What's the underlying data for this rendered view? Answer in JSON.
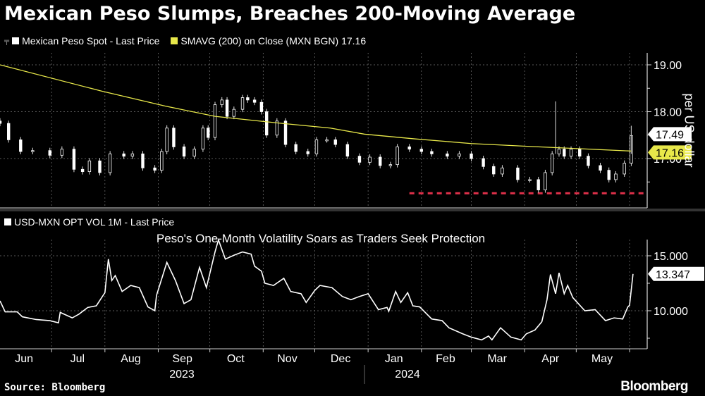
{
  "title": "Mexican Peso Slumps, Breaches 200-Moving Average",
  "source": "Source: Bloomberg",
  "logo": "Bloomberg",
  "colors": {
    "background": "#000000",
    "price": "#ffffff",
    "sma": "#e8e84a",
    "support": "#e0304a",
    "grid": "#777777"
  },
  "chart_data": [
    {
      "type": "candlestick",
      "legend": [
        {
          "name": "Mexican Peso Spot - Last Price",
          "color": "#ffffff"
        },
        {
          "name": "SMAVG (200)  on Close (MXN BGN) 17.16",
          "color": "#e8e84a"
        }
      ],
      "legend_placement": "top-left",
      "ylabel": "per US dollar",
      "ylim": [
        16.0,
        19.25
      ],
      "yticks": [
        "19.00",
        "18.00",
        "17.00"
      ],
      "grid": true,
      "last_labels": [
        {
          "value": "17.49",
          "series": "price"
        },
        {
          "value": "17.16",
          "series": "sma"
        }
      ],
      "price_close": [
        [
          "2023-06-01",
          17.75
        ],
        [
          "2023-06-06",
          17.4
        ],
        [
          "2023-06-13",
          17.15
        ],
        [
          "2023-06-20",
          17.17
        ],
        [
          "2023-06-30",
          17.07
        ],
        [
          "2023-07-07",
          17.2
        ],
        [
          "2023-07-14",
          16.77
        ],
        [
          "2023-07-19",
          16.72
        ],
        [
          "2023-07-23",
          16.95
        ],
        [
          "2023-07-29",
          16.7
        ],
        [
          "2023-08-04",
          17.1
        ],
        [
          "2023-08-12",
          17.05
        ],
        [
          "2023-08-17",
          17.1
        ],
        [
          "2023-08-23",
          16.8
        ],
        [
          "2023-08-30",
          16.75
        ],
        [
          "2023-09-03",
          17.15
        ],
        [
          "2023-09-06",
          17.65
        ],
        [
          "2023-09-10",
          17.25
        ],
        [
          "2023-09-16",
          17.05
        ],
        [
          "2023-09-22",
          17.2
        ],
        [
          "2023-09-27",
          17.65
        ],
        [
          "2023-09-30",
          17.45
        ],
        [
          "2023-10-04",
          18.15
        ],
        [
          "2023-10-08",
          18.25
        ],
        [
          "2023-10-11",
          17.9
        ],
        [
          "2023-10-15",
          18.05
        ],
        [
          "2023-10-20",
          18.3
        ],
        [
          "2023-10-23",
          18.25
        ],
        [
          "2023-10-27",
          18.2
        ],
        [
          "2023-10-31",
          18.0
        ],
        [
          "2023-11-03",
          17.5
        ],
        [
          "2023-11-09",
          17.8
        ],
        [
          "2023-11-14",
          17.3
        ],
        [
          "2023-11-20",
          17.15
        ],
        [
          "2023-11-27",
          17.1
        ],
        [
          "2023-12-02",
          17.4
        ],
        [
          "2023-12-08",
          17.4
        ],
        [
          "2023-12-13",
          17.3
        ],
        [
          "2023-12-20",
          17.05
        ],
        [
          "2023-12-27",
          16.92
        ],
        [
          "2024-01-02",
          17.03
        ],
        [
          "2024-01-08",
          16.85
        ],
        [
          "2024-01-14",
          16.87
        ],
        [
          "2024-01-18",
          17.25
        ],
        [
          "2024-01-25",
          17.2
        ],
        [
          "2024-02-01",
          17.15
        ],
        [
          "2024-02-07",
          17.1
        ],
        [
          "2024-02-16",
          17.05
        ],
        [
          "2024-02-23",
          17.1
        ],
        [
          "2024-03-01",
          17.0
        ],
        [
          "2024-03-08",
          16.83
        ],
        [
          "2024-03-14",
          16.67
        ],
        [
          "2024-03-19",
          16.8
        ],
        [
          "2024-03-28",
          16.55
        ],
        [
          "2024-04-04",
          16.55
        ],
        [
          "2024-04-09",
          16.33
        ],
        [
          "2024-04-13",
          16.7
        ],
        [
          "2024-04-17",
          17.1
        ],
        [
          "2024-04-21",
          17.2
        ],
        [
          "2024-04-24",
          17.05
        ],
        [
          "2024-04-28",
          17.2
        ],
        [
          "2024-05-03",
          17.05
        ],
        [
          "2024-05-08",
          16.85
        ],
        [
          "2024-05-15",
          16.75
        ],
        [
          "2024-05-20",
          16.55
        ],
        [
          "2024-05-24",
          16.67
        ],
        [
          "2024-05-29",
          16.9
        ],
        [
          "2024-06-02",
          17.49
        ]
      ],
      "price_spikes": [
        [
          "2024-04-19",
          18.22
        ],
        [
          "2024-06-02",
          17.7
        ]
      ],
      "sma": [
        [
          "2023-06-01",
          19.0
        ],
        [
          "2023-07-30",
          18.44
        ],
        [
          "2023-09-05",
          18.12
        ],
        [
          "2023-10-04",
          17.9
        ],
        [
          "2023-11-12",
          17.75
        ],
        [
          "2023-12-10",
          17.65
        ],
        [
          "2023-12-30",
          17.52
        ],
        [
          "2024-01-28",
          17.42
        ],
        [
          "2024-03-01",
          17.32
        ],
        [
          "2024-04-09",
          17.25
        ],
        [
          "2024-06-02",
          17.16
        ]
      ],
      "support_line": {
        "value": 16.26,
        "from": "2024-01-25"
      }
    },
    {
      "type": "line",
      "legend": [
        {
          "name": "USD-MXN OPT VOL 1M - Last Price",
          "color": "#ffffff"
        }
      ],
      "title": "Peso's One-Month Volatility Soars as Traders Seek Protection",
      "ylim": [
        6.5,
        16.5
      ],
      "yticks": [
        "15.000",
        "10.000"
      ],
      "grid": true,
      "last_label": "13.347",
      "series": [
        [
          "2023-06-01",
          10.9
        ],
        [
          "2023-06-04",
          9.9
        ],
        [
          "2023-06-11",
          9.9
        ],
        [
          "2023-06-14",
          9.45
        ],
        [
          "2023-06-22",
          9.2
        ],
        [
          "2023-06-30",
          9.1
        ],
        [
          "2023-07-05",
          8.9
        ],
        [
          "2023-07-06",
          9.85
        ],
        [
          "2023-07-13",
          9.35
        ],
        [
          "2023-07-17",
          9.7
        ],
        [
          "2023-07-22",
          10.3
        ],
        [
          "2023-07-27",
          10.45
        ],
        [
          "2023-08-01",
          11.65
        ],
        [
          "2023-08-03",
          14.7
        ],
        [
          "2023-08-05",
          12.75
        ],
        [
          "2023-08-07",
          13.2
        ],
        [
          "2023-08-11",
          11.75
        ],
        [
          "2023-08-16",
          12.3
        ],
        [
          "2023-08-21",
          12.1
        ],
        [
          "2023-08-26",
          10.35
        ],
        [
          "2023-08-30",
          10.0
        ],
        [
          "2023-08-31",
          11.4
        ],
        [
          "2023-09-06",
          14.4
        ],
        [
          "2023-09-11",
          12.75
        ],
        [
          "2023-09-16",
          10.65
        ],
        [
          "2023-09-20",
          11.0
        ],
        [
          "2023-09-25",
          13.95
        ],
        [
          "2023-09-29",
          12.1
        ],
        [
          "2023-10-04",
          15.35
        ],
        [
          "2023-10-06",
          16.45
        ],
        [
          "2023-10-10",
          14.7
        ],
        [
          "2023-10-15",
          15.05
        ],
        [
          "2023-10-20",
          15.35
        ],
        [
          "2023-10-25",
          15.15
        ],
        [
          "2023-10-27",
          14.05
        ],
        [
          "2023-10-31",
          13.6
        ],
        [
          "2023-11-02",
          12.5
        ],
        [
          "2023-11-07",
          12.3
        ],
        [
          "2023-11-13",
          12.95
        ],
        [
          "2023-11-17",
          11.75
        ],
        [
          "2023-11-23",
          11.55
        ],
        [
          "2023-11-26",
          10.75
        ],
        [
          "2023-12-01",
          11.85
        ],
        [
          "2023-12-04",
          12.3
        ],
        [
          "2023-12-11",
          12.1
        ],
        [
          "2023-12-17",
          11.3
        ],
        [
          "2023-12-22",
          11.0
        ],
        [
          "2023-12-27",
          11.3
        ],
        [
          "2024-01-01",
          11.55
        ],
        [
          "2024-01-07",
          10.1
        ],
        [
          "2024-01-12",
          10.3
        ],
        [
          "2024-01-13",
          9.95
        ],
        [
          "2024-01-17",
          11.75
        ],
        [
          "2024-01-20",
          10.75
        ],
        [
          "2024-01-24",
          11.65
        ],
        [
          "2024-01-27",
          10.45
        ],
        [
          "2024-01-31",
          10.35
        ],
        [
          "2024-02-07",
          9.25
        ],
        [
          "2024-02-13",
          9.1
        ],
        [
          "2024-02-17",
          8.45
        ],
        [
          "2024-02-25",
          7.9
        ],
        [
          "2024-03-01",
          7.6
        ],
        [
          "2024-03-07",
          7.35
        ],
        [
          "2024-03-11",
          7.7
        ],
        [
          "2024-03-13",
          7.35
        ],
        [
          "2024-03-18",
          8.45
        ],
        [
          "2024-03-24",
          7.6
        ],
        [
          "2024-03-30",
          7.35
        ],
        [
          "2024-04-02",
          7.9
        ],
        [
          "2024-04-07",
          8.25
        ],
        [
          "2024-04-11",
          9.0
        ],
        [
          "2024-04-14",
          11.0
        ],
        [
          "2024-04-16",
          13.3
        ],
        [
          "2024-04-19",
          11.55
        ],
        [
          "2024-04-21",
          13.45
        ],
        [
          "2024-04-24",
          11.55
        ],
        [
          "2024-04-26",
          12.3
        ],
        [
          "2024-04-29",
          11.2
        ],
        [
          "2024-05-06",
          10.0
        ],
        [
          "2024-05-12",
          10.1
        ],
        [
          "2024-05-18",
          9.1
        ],
        [
          "2024-05-23",
          9.35
        ],
        [
          "2024-05-28",
          9.25
        ],
        [
          "2024-05-31",
          10.35
        ],
        [
          "2024-06-01",
          10.5
        ],
        [
          "2024-06-03",
          13.347
        ]
      ]
    }
  ],
  "x_axis": {
    "months": [
      "Jun",
      "Jul",
      "Aug",
      "Sep",
      "Oct",
      "Nov",
      "Dec",
      "Jan",
      "Feb",
      "Mar",
      "Apr",
      "May"
    ],
    "years": [
      "2023",
      "2024"
    ]
  }
}
